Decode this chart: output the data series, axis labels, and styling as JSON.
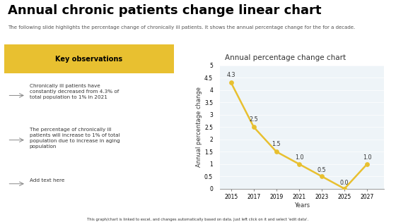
{
  "title": "Annual chronic patients change linear chart",
  "subtitle": "The following slide highlights the percentage change of chronically ill patients. It shows the annual percentage change for the for a decade.",
  "chart_title": "Annual percentage change chart",
  "xlabel": "Years",
  "ylabel": "Annual percentage change",
  "years": [
    2015,
    2017,
    2019,
    2021,
    2023,
    2025,
    2027
  ],
  "values": [
    4.3,
    2.5,
    1.5,
    1.0,
    0.5,
    0.0,
    1.0
  ],
  "ylim": [
    0,
    5
  ],
  "yticks": [
    0,
    0.5,
    1,
    1.5,
    2,
    2.5,
    3,
    3.5,
    4,
    4.5,
    5
  ],
  "line_color": "#E8C030",
  "bg_color": "#EEF4F8",
  "panel_bg": "#F0F5F8",
  "key_obs_bg": "#E8C030",
  "key_obs_title": "Key observations",
  "obs1": "Chronically ill patients have\nconstantly decreased from 4.3% of\ntotal population to 1% in 2021",
  "obs2": "The percentage of chronically ill\npatients will increase to 1% of total\npopulation due to increase in aging\npopulation",
  "obs3": "Add text here",
  "footer": "This graph/chart is linked to excel, and changes automatically based on data. Just left click on it and select 'edit data'.",
  "bottom_bar_color": "#E8C030",
  "title_fontsize": 13,
  "subtitle_fontsize": 5.0,
  "chart_title_fontsize": 7.5,
  "axis_label_fontsize": 6.0,
  "tick_fontsize": 5.5,
  "obs_fontsize": 5.2,
  "data_label_fontsize": 5.8
}
